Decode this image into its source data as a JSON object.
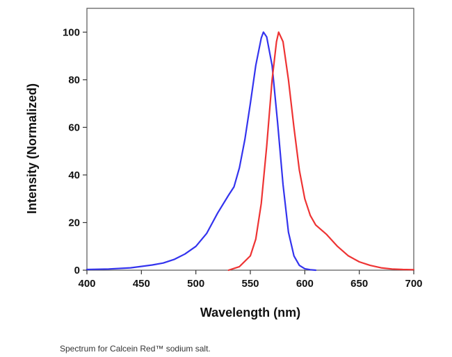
{
  "caption": "Spectrum for Calcein Red™ sodium salt.",
  "chart_data": {
    "type": "line",
    "title": "",
    "xlabel": "Wavelength (nm)",
    "ylabel": "Intensity (Normalized)",
    "xlim": [
      400,
      700
    ],
    "ylim": [
      0,
      110
    ],
    "xticks": [
      400,
      450,
      500,
      550,
      600,
      650,
      700
    ],
    "yticks": [
      0,
      20,
      40,
      60,
      80,
      100
    ],
    "grid": false,
    "legend": "none",
    "series": [
      {
        "color": "#3333ee",
        "points": [
          [
            400,
            0.3
          ],
          [
            420,
            0.5
          ],
          [
            440,
            1.0
          ],
          [
            460,
            2.2
          ],
          [
            470,
            3.0
          ],
          [
            480,
            4.5
          ],
          [
            490,
            6.8
          ],
          [
            500,
            10.0
          ],
          [
            510,
            15.5
          ],
          [
            520,
            24.0
          ],
          [
            530,
            31.5
          ],
          [
            535,
            35.0
          ],
          [
            540,
            43.0
          ],
          [
            545,
            55.0
          ],
          [
            550,
            70.0
          ],
          [
            555,
            86.0
          ],
          [
            560,
            97.5
          ],
          [
            562,
            100.0
          ],
          [
            565,
            98.0
          ],
          [
            570,
            86.0
          ],
          [
            575,
            62.0
          ],
          [
            580,
            36.0
          ],
          [
            585,
            16.0
          ],
          [
            590,
            6.0
          ],
          [
            595,
            2.0
          ],
          [
            600,
            0.6
          ],
          [
            605,
            0.2
          ],
          [
            610,
            0.0
          ]
        ]
      },
      {
        "color": "#ee3333",
        "points": [
          [
            530,
            0.0
          ],
          [
            540,
            1.5
          ],
          [
            550,
            6.0
          ],
          [
            555,
            13.0
          ],
          [
            560,
            28.0
          ],
          [
            565,
            52.0
          ],
          [
            570,
            80.0
          ],
          [
            574,
            96.0
          ],
          [
            576,
            100.0
          ],
          [
            580,
            96.0
          ],
          [
            585,
            80.0
          ],
          [
            590,
            60.0
          ],
          [
            595,
            42.0
          ],
          [
            600,
            30.0
          ],
          [
            605,
            23.0
          ],
          [
            610,
            19.0
          ],
          [
            620,
            15.0
          ],
          [
            630,
            10.0
          ],
          [
            640,
            6.0
          ],
          [
            650,
            3.5
          ],
          [
            660,
            2.0
          ],
          [
            670,
            1.0
          ],
          [
            680,
            0.5
          ],
          [
            690,
            0.3
          ],
          [
            700,
            0.2
          ]
        ]
      }
    ]
  }
}
